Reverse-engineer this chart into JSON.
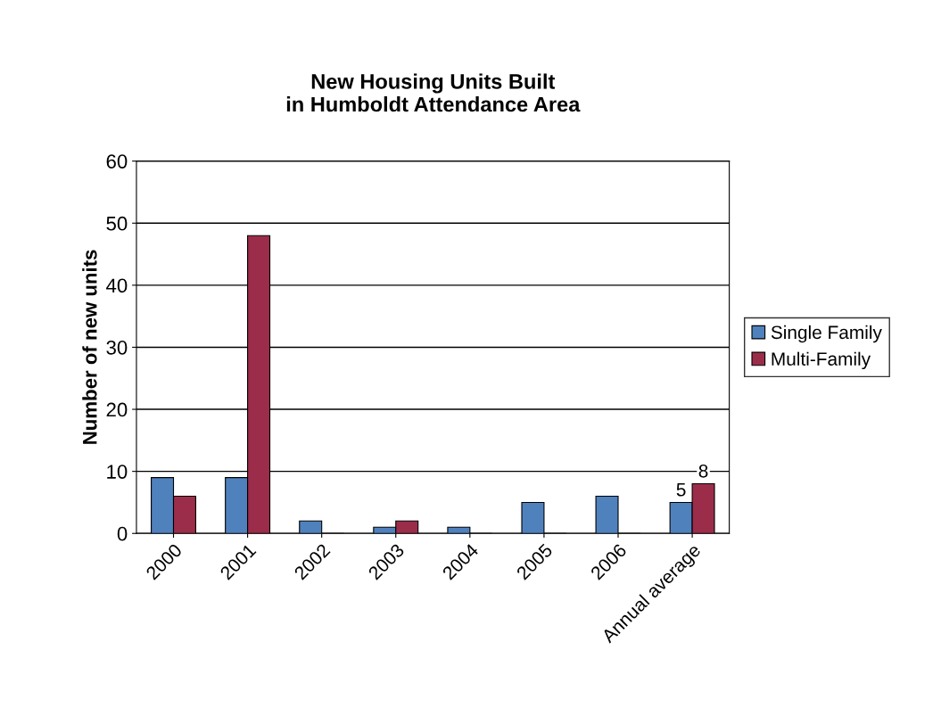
{
  "chart_data": {
    "type": "bar",
    "title": "New Housing Units Built\nin Humboldt Attendance Area",
    "ylabel": "Number of new units",
    "categories": [
      "2000",
      "2001",
      "2002",
      "2003",
      "2004",
      "2005",
      "2006",
      "Annual average"
    ],
    "series": [
      {
        "name": "Single Family",
        "color": "#4f81bd",
        "values": [
          9,
          9,
          2,
          1,
          1,
          5,
          6,
          5
        ],
        "value_labels": [
          null,
          null,
          null,
          null,
          null,
          null,
          null,
          "5"
        ]
      },
      {
        "name": "Multi-Family",
        "color": "#9b2d4a",
        "values": [
          6,
          48,
          0,
          2,
          0,
          0,
          0,
          8
        ],
        "value_labels": [
          null,
          null,
          null,
          null,
          null,
          null,
          null,
          "8"
        ]
      }
    ],
    "ylim": [
      0,
      60
    ],
    "yticks": [
      0,
      10,
      20,
      30,
      40,
      50,
      60
    ],
    "grid": "y",
    "legend": "right"
  }
}
